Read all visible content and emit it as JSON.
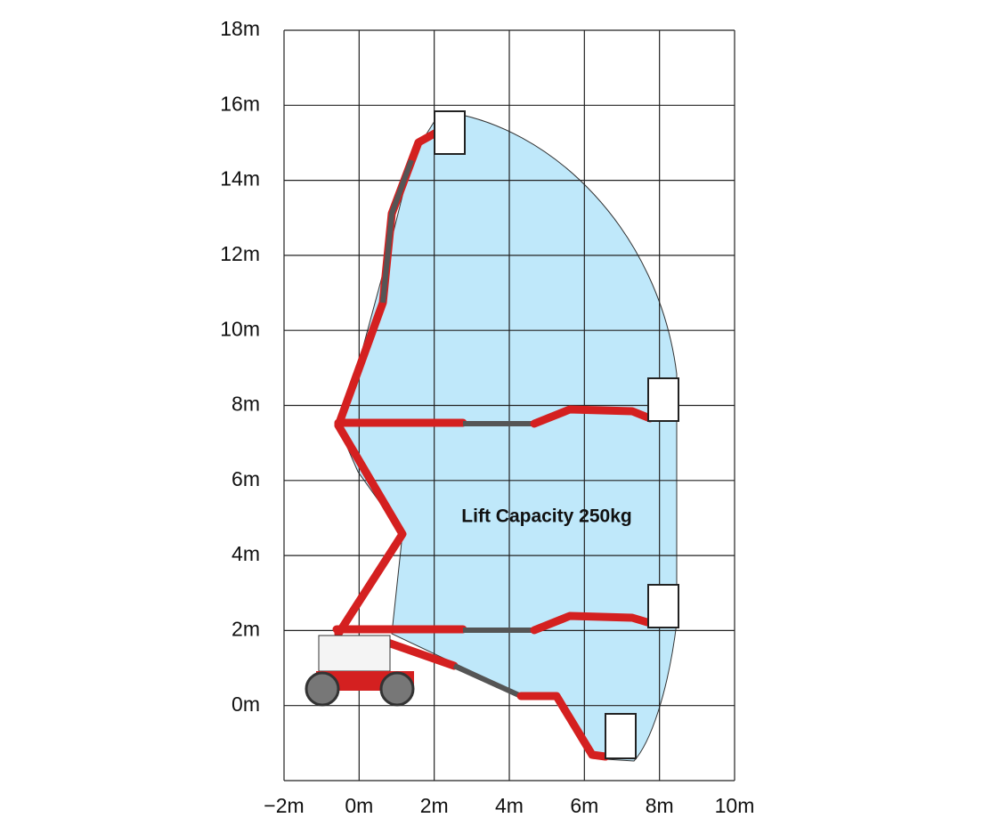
{
  "diagram": {
    "annotation": "Lift Capacity 250kg",
    "xlim": [
      -2,
      10
    ],
    "ylim": [
      -2,
      18
    ],
    "xticks": [
      {
        "value": -2,
        "label": "−2m"
      },
      {
        "value": 0,
        "label": "0m"
      },
      {
        "value": 2,
        "label": "2m"
      },
      {
        "value": 4,
        "label": "4m"
      },
      {
        "value": 6,
        "label": "6m"
      },
      {
        "value": 8,
        "label": "8m"
      },
      {
        "value": 10,
        "label": "10m"
      }
    ],
    "yticks": [
      {
        "value": 0,
        "label": "0m"
      },
      {
        "value": 2,
        "label": "2m"
      },
      {
        "value": 4,
        "label": "4m"
      },
      {
        "value": 6,
        "label": "6m"
      },
      {
        "value": 8,
        "label": "8m"
      },
      {
        "value": 10,
        "label": "10m"
      },
      {
        "value": 12,
        "label": "12m"
      },
      {
        "value": 14,
        "label": "14m"
      },
      {
        "value": 16,
        "label": "16m"
      },
      {
        "value": 18,
        "label": "18m"
      }
    ]
  }
}
